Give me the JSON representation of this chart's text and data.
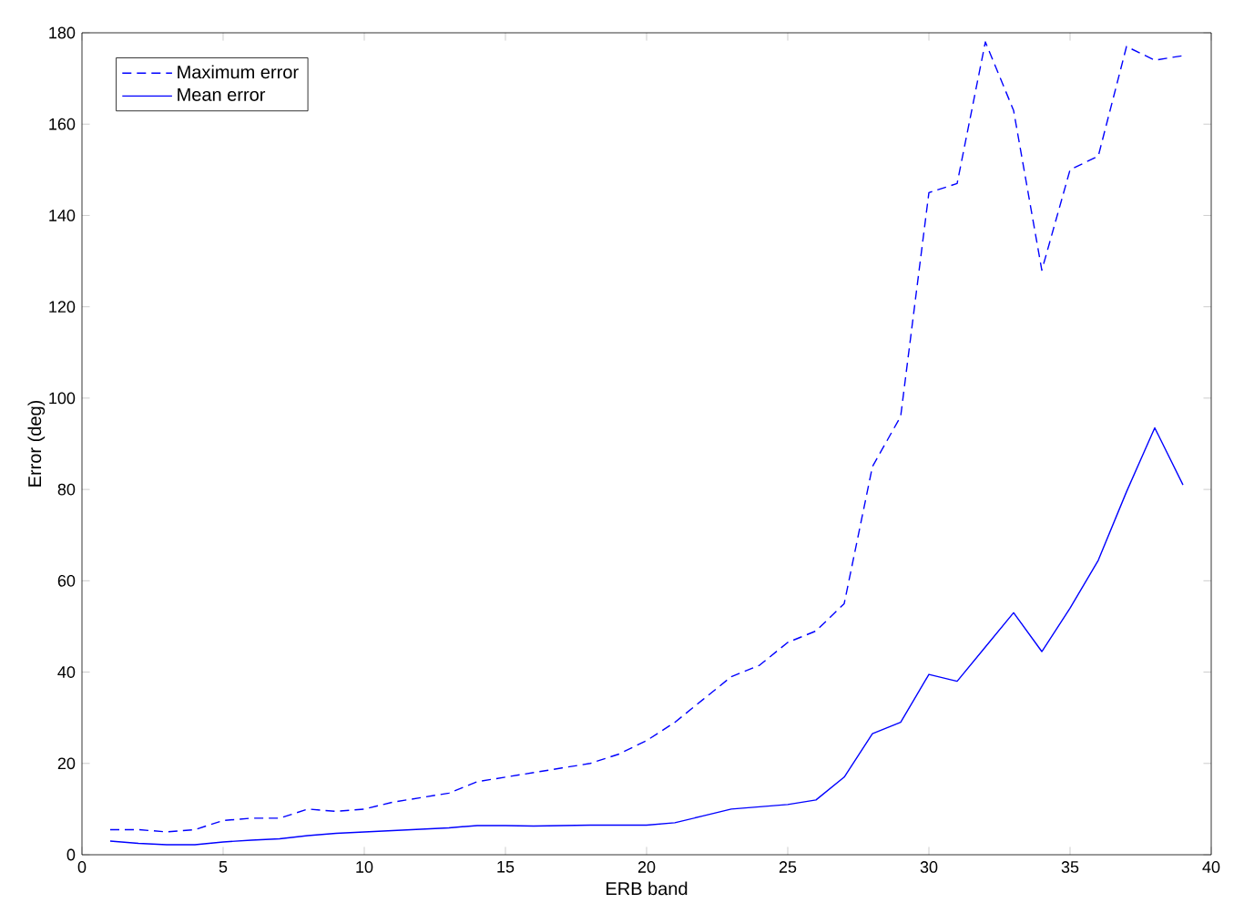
{
  "chart_data": {
    "type": "line",
    "xlabel": "ERB band",
    "ylabel": "Error (deg)",
    "x": [
      1,
      2,
      3,
      4,
      5,
      6,
      7,
      8,
      9,
      10,
      11,
      12,
      13,
      14,
      15,
      16,
      17,
      18,
      19,
      20,
      21,
      22,
      23,
      24,
      25,
      26,
      27,
      28,
      29,
      30,
      31,
      32,
      33,
      34,
      35,
      36,
      37,
      38,
      39
    ],
    "series": [
      {
        "name": "Maximum error",
        "color": "#0000ff",
        "line_style": "dashed",
        "values": [
          5.5,
          5.5,
          5,
          5.5,
          7.5,
          8,
          8,
          10,
          9.5,
          10,
          11.5,
          12.5,
          13.5,
          16,
          17,
          18,
          19,
          20,
          22,
          25,
          29,
          34,
          39,
          41.5,
          46.5,
          49,
          55,
          85,
          96,
          145,
          147,
          178,
          163,
          128,
          150,
          153,
          177,
          174,
          175
        ]
      },
      {
        "name": "Mean error",
        "color": "#0000ff",
        "line_style": "solid",
        "values": [
          3,
          2.5,
          2.2,
          2.2,
          2.8,
          3.2,
          3.5,
          4.2,
          4.7,
          5,
          5.3,
          5.6,
          5.9,
          6.4,
          6.4,
          6.3,
          6.4,
          6.5,
          6.5,
          6.5,
          7,
          8.5,
          10,
          10.5,
          11,
          12,
          17,
          26.5,
          29,
          39.5,
          38,
          45.5,
          53,
          44.5,
          54,
          64.5,
          79.5,
          93.5,
          81
        ]
      }
    ],
    "xlim": [
      0,
      40
    ],
    "ylim": [
      0,
      180
    ],
    "xticks": [
      0,
      5,
      10,
      15,
      20,
      25,
      30,
      35,
      40
    ],
    "yticks": [
      0,
      20,
      40,
      60,
      80,
      100,
      120,
      140,
      160,
      180
    ],
    "legend": "top left"
  }
}
